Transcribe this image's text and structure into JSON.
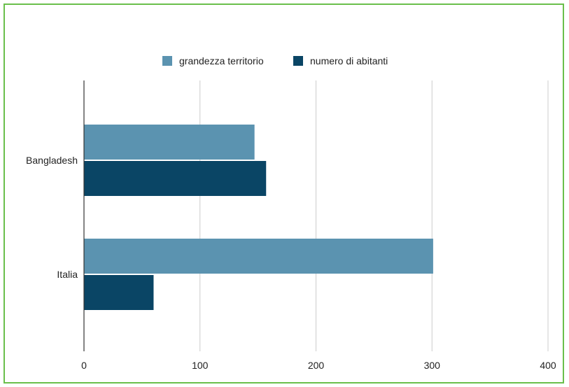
{
  "chart_data": {
    "type": "bar",
    "orientation": "horizontal",
    "categories": [
      "Bangladesh",
      "Italia"
    ],
    "series": [
      {
        "name": "grandezza territorio",
        "values": [
          147,
          301
        ],
        "color": "#5b93b0"
      },
      {
        "name": "numero di abitanti",
        "values": [
          157,
          60
        ],
        "color": "#0a4565"
      }
    ],
    "x_ticks": [
      "0",
      "100",
      "200",
      "300",
      "400"
    ],
    "xlim": [
      0,
      400
    ],
    "grid": true,
    "legend": "top"
  },
  "colors": {
    "border": "#6abf4b",
    "grid": "#cccccc",
    "axis": "#333333"
  }
}
